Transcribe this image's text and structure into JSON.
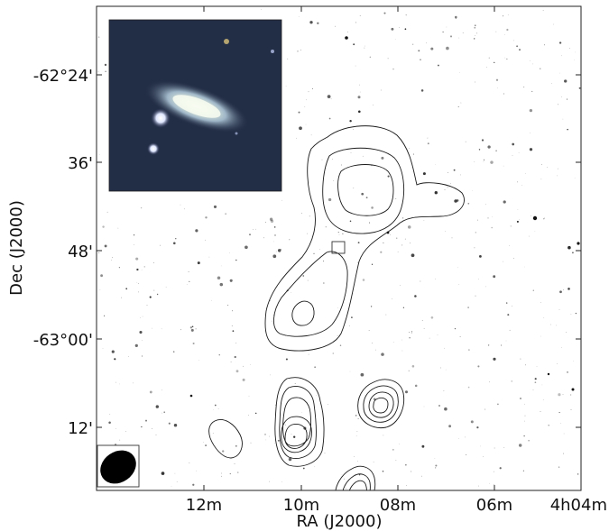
{
  "figure": {
    "xlabel": "RA (J2000)",
    "ylabel": "Dec (J2000)",
    "x_ticks": [
      "12m",
      "10m",
      "08m",
      "06m",
      "4h04m"
    ],
    "y_ticks": [
      "-62°24'",
      "36'",
      "48'",
      "-63°00'",
      "12'"
    ],
    "background": "optical sky survey, inverted greyscale",
    "contour_color": "#1a1a1a",
    "inset": "colour optical image of a spiral galaxy",
    "beam": "filled ellipse, lower-left corner"
  }
}
